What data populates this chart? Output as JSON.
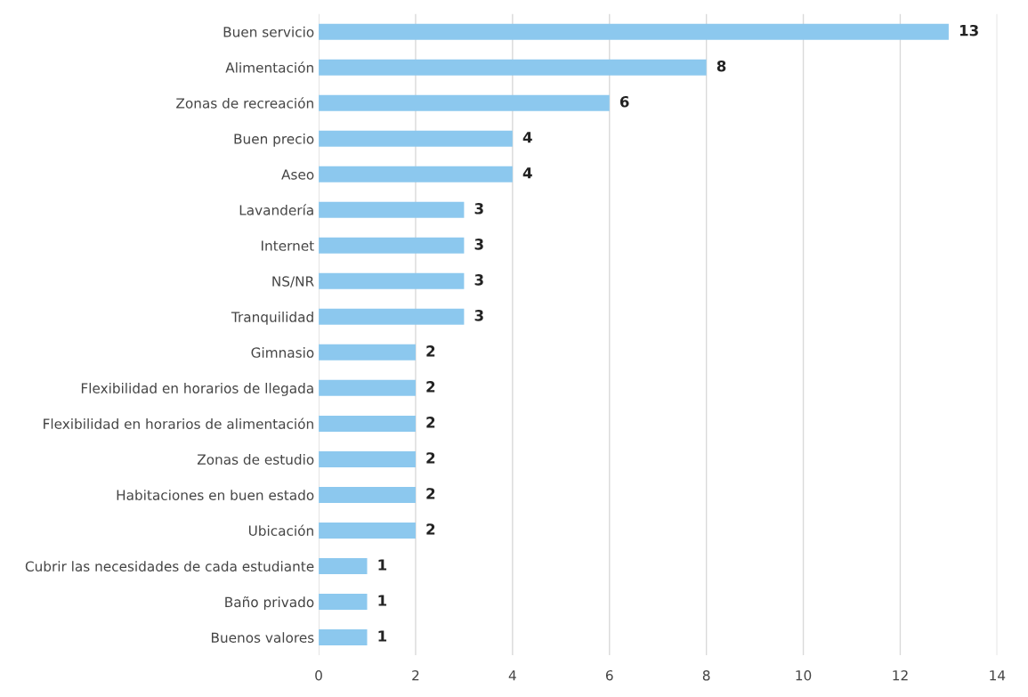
{
  "chart_data": {
    "type": "bar",
    "orientation": "horizontal",
    "categories": [
      "Buen servicio",
      "Alimentación",
      "Zonas de recreación",
      "Buen precio",
      "Aseo",
      "Lavandería",
      "Internet",
      "NS/NR",
      "Tranquilidad",
      "Gimnasio",
      "Flexibilidad en horarios de llegada",
      "Flexibilidad en horarios de alimentación",
      "Zonas de estudio",
      "Habitaciones en buen estado",
      "Ubicación",
      "Cubrir las necesidades de cada estudiante",
      "Baño privado",
      "Buenos valores"
    ],
    "values": [
      13,
      8,
      6,
      4,
      4,
      3,
      3,
      3,
      3,
      2,
      2,
      2,
      2,
      2,
      2,
      1,
      1,
      1
    ],
    "color": "#8cc8ee",
    "xlim": [
      0,
      14
    ],
    "xticks": [
      0,
      2,
      4,
      6,
      8,
      10,
      12,
      14
    ],
    "grid": "x",
    "data_labels": true
  }
}
